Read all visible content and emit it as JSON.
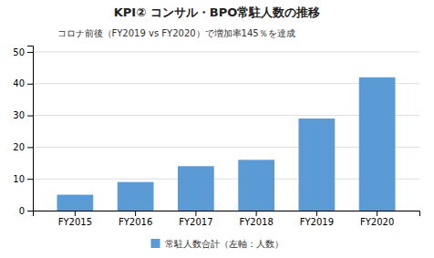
{
  "chart_data": {
    "type": "bar",
    "title": "KPI② コンサル・BPO常駐人数の推移",
    "annotation": "コロナ前後（FY2019 vs FY2020）で増加率145％を達成",
    "categories": [
      "FY2015",
      "FY2016",
      "FY2017",
      "FY2018",
      "FY2019",
      "FY2020"
    ],
    "series": [
      {
        "name": "常駐人数合計（左軸：人数）",
        "color": "#5B9BD5",
        "values": [
          5,
          9,
          14,
          16,
          29,
          42
        ]
      }
    ],
    "ylim": [
      0,
      52
    ],
    "yticks": [
      0,
      10,
      20,
      30,
      40,
      50
    ],
    "grid": true,
    "legend": "bottom"
  }
}
